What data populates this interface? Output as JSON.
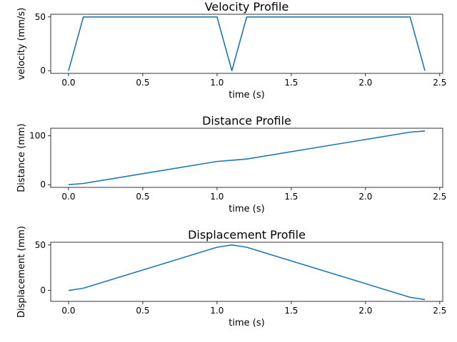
{
  "chart_data": [
    {
      "type": "line",
      "title": "Velocity Profile",
      "xlabel": "time (s)",
      "ylabel": "velocity (mm/s)",
      "xlim": [
        -0.12,
        2.52
      ],
      "ylim": [
        -2.5,
        52.5
      ],
      "xticks": [
        0.0,
        0.5,
        1.0,
        1.5,
        2.0,
        2.5
      ],
      "xtick_labels": [
        "0.0",
        "0.5",
        "1.0",
        "1.5",
        "2.0",
        "2.5"
      ],
      "yticks": [
        0,
        50
      ],
      "ytick_labels": [
        "0",
        "50"
      ],
      "grid": false,
      "legend": null,
      "color": "#1f77b4",
      "series": [
        {
          "x": [
            0.0,
            0.1,
            1.0,
            1.1,
            1.2,
            2.3,
            2.4
          ],
          "y": [
            0,
            50,
            50,
            0,
            50,
            50,
            0
          ]
        }
      ]
    },
    {
      "type": "line",
      "title": "Distance Profile",
      "xlabel": "time (s)",
      "ylabel": "Distance (mm)",
      "xlim": [
        -0.12,
        2.52
      ],
      "ylim": [
        -5.5,
        115.5
      ],
      "xticks": [
        0.0,
        0.5,
        1.0,
        1.5,
        2.0,
        2.5
      ],
      "xtick_labels": [
        "0.0",
        "0.5",
        "1.0",
        "1.5",
        "2.0",
        "2.5"
      ],
      "yticks": [
        0,
        100
      ],
      "ytick_labels": [
        "0",
        "100"
      ],
      "grid": false,
      "legend": null,
      "color": "#1f77b4",
      "series": [
        {
          "x": [
            0.0,
            0.1,
            1.0,
            1.1,
            1.2,
            2.3,
            2.4
          ],
          "y": [
            0,
            2.5,
            47.5,
            50,
            52.5,
            107.5,
            110
          ]
        }
      ]
    },
    {
      "type": "line",
      "title": "Displacement Profile",
      "xlabel": "time (s)",
      "ylabel": "Displacement (mm)",
      "xlim": [
        -0.12,
        2.52
      ],
      "ylim": [
        -12,
        53
      ],
      "xticks": [
        0.0,
        0.5,
        1.0,
        1.5,
        2.0,
        2.5
      ],
      "xtick_labels": [
        "0.0",
        "0.5",
        "1.0",
        "1.5",
        "2.0",
        "2.5"
      ],
      "yticks": [
        0,
        50
      ],
      "ytick_labels": [
        "0",
        "50"
      ],
      "grid": false,
      "legend": null,
      "color": "#1f77b4",
      "series": [
        {
          "x": [
            0.0,
            0.1,
            1.0,
            1.1,
            1.2,
            2.3,
            2.4
          ],
          "y": [
            0,
            2.5,
            47.5,
            50,
            47.5,
            -7.5,
            -10
          ]
        }
      ]
    }
  ]
}
